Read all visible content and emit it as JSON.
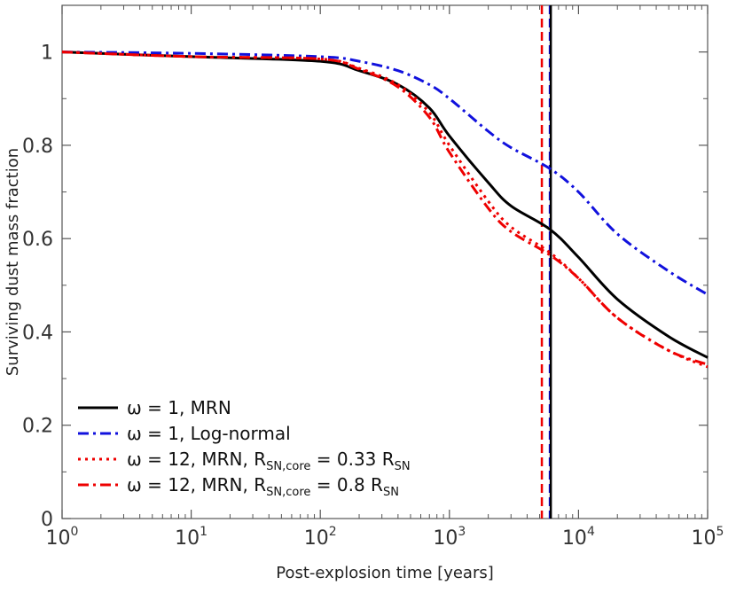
{
  "chart_data": {
    "type": "line",
    "title": "",
    "xlabel": "Post-explosion time [years]",
    "ylabel": "Surviving dust mass fraction",
    "xscale": "log",
    "xlim": [
      1,
      100000
    ],
    "ylim": [
      0,
      1.1
    ],
    "x_ticks": [
      {
        "value": 1,
        "base": "10",
        "exp": "0"
      },
      {
        "value": 10,
        "base": "10",
        "exp": "1"
      },
      {
        "value": 100,
        "base": "10",
        "exp": "2"
      },
      {
        "value": 1000,
        "base": "10",
        "exp": "3"
      },
      {
        "value": 10000,
        "base": "10",
        "exp": "4"
      },
      {
        "value": 100000,
        "base": "10",
        "exp": "5"
      }
    ],
    "y_ticks": [
      {
        "value": 0,
        "label": "0"
      },
      {
        "value": 0.2,
        "label": "0.2"
      },
      {
        "value": 0.4,
        "label": "0.4"
      },
      {
        "value": 0.6,
        "label": "0.6"
      },
      {
        "value": 0.8,
        "label": "0.8"
      },
      {
        "value": 1.0,
        "label": "1"
      }
    ],
    "series": [
      {
        "name": "ω = 1, MRN",
        "label_main": "ω = 1, MRN",
        "color": "#000000",
        "dash": "solid",
        "x": [
          1,
          10,
          100,
          200,
          400,
          700,
          1000,
          2000,
          3000,
          6000,
          10000,
          20000,
          50000,
          100000
        ],
        "y": [
          1.0,
          0.99,
          0.98,
          0.96,
          0.93,
          0.88,
          0.82,
          0.72,
          0.67,
          0.62,
          0.56,
          0.47,
          0.39,
          0.345
        ]
      },
      {
        "name": "ω = 1, Log-normal",
        "label_main": "ω = 1, Log-normal",
        "color": "#1111dd",
        "dash": "dashdot",
        "x": [
          1,
          10,
          100,
          200,
          400,
          700,
          1000,
          2000,
          3000,
          6000,
          10000,
          20000,
          50000,
          100000
        ],
        "y": [
          1.0,
          0.997,
          0.99,
          0.98,
          0.96,
          0.93,
          0.9,
          0.83,
          0.795,
          0.75,
          0.7,
          0.61,
          0.53,
          0.48
        ]
      },
      {
        "name": "ω = 12, MRN, RSN,core = 0.33 RSN",
        "label_main": "ω = 12, MRN, R",
        "label_sub1": "SN,core",
        "label_mid": " = 0.33 R",
        "label_sub2": "SN",
        "color": "#ee0000",
        "dash": "dotted",
        "x": [
          1,
          10,
          100,
          200,
          400,
          700,
          1000,
          2000,
          3000,
          6000,
          10000,
          20000,
          50000,
          100000
        ],
        "y": [
          1.0,
          0.99,
          0.985,
          0.965,
          0.93,
          0.87,
          0.8,
          0.68,
          0.625,
          0.57,
          0.515,
          0.43,
          0.36,
          0.325
        ]
      },
      {
        "name": "ω = 12, MRN, RSN,core = 0.8 RSN",
        "label_main": "ω = 12, MRN, R",
        "label_sub1": "SN,core",
        "label_mid": " = 0.8 R",
        "label_sub2": "SN",
        "color": "#ee0000",
        "dash": "dashdot",
        "x": [
          1,
          10,
          100,
          200,
          400,
          700,
          1000,
          2000,
          3000,
          6000,
          10000,
          20000,
          50000,
          100000
        ],
        "y": [
          1.0,
          0.99,
          0.985,
          0.963,
          0.925,
          0.86,
          0.785,
          0.665,
          0.615,
          0.565,
          0.515,
          0.43,
          0.36,
          0.33
        ]
      }
    ],
    "vertical_lines": [
      {
        "x": 5200,
        "color": "#ee0000",
        "dash": "dashed"
      },
      {
        "x": 6000,
        "color": "#1111dd",
        "dash": "dashed"
      },
      {
        "x": 6100,
        "color": "#000000",
        "dash": "solid"
      }
    ],
    "legend": {
      "position": "bottom-left"
    },
    "grid": false
  }
}
